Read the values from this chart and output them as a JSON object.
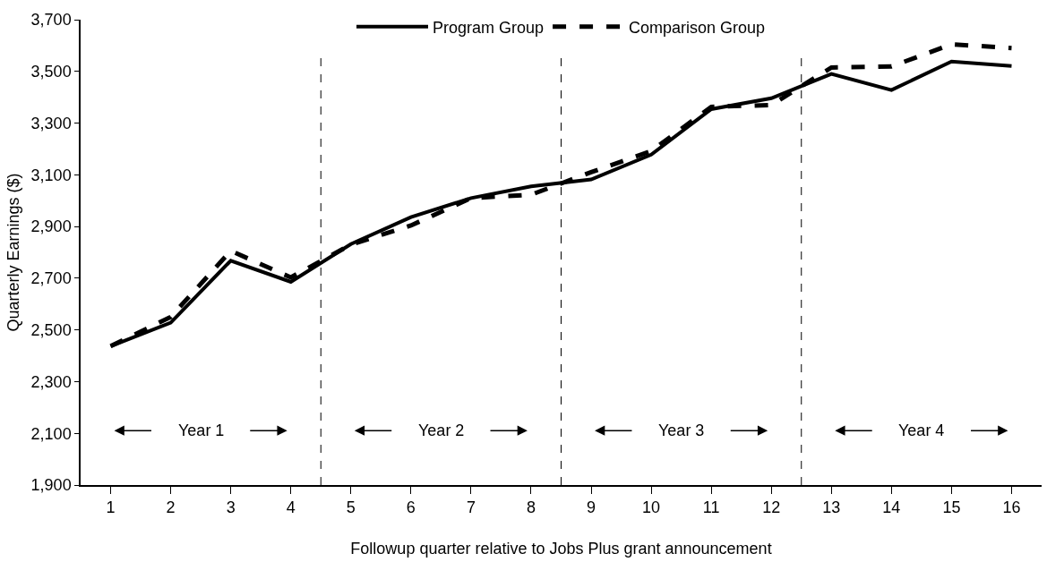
{
  "chart_data": {
    "type": "line",
    "xlabel": "Followup quarter relative to Jobs Plus grant announcement",
    "ylabel": "Quarterly Earnings ($)",
    "x": [
      1,
      2,
      3,
      4,
      5,
      6,
      7,
      8,
      9,
      10,
      11,
      12,
      13,
      14,
      15,
      16
    ],
    "series": [
      {
        "name": "Program Group",
        "color": "#000000",
        "line_style": "solid",
        "values": [
          2437,
          2528,
          2768,
          2686,
          2832,
          2936,
          3010,
          3055,
          3082,
          3178,
          3354,
          3396,
          3490,
          3428,
          3538,
          3521
        ]
      },
      {
        "name": "Comparison Group",
        "color": "#000000",
        "line_style": "dashed",
        "values": [
          2437,
          2550,
          2806,
          2703,
          2830,
          2904,
          3010,
          3023,
          3110,
          3192,
          3363,
          3370,
          3515,
          3519,
          3605,
          3590
        ]
      }
    ],
    "xlim": [
      0.5,
      16.5
    ],
    "xticks": [
      1,
      2,
      3,
      4,
      5,
      6,
      7,
      8,
      9,
      10,
      11,
      12,
      13,
      14,
      15,
      16
    ],
    "ylim": [
      1900,
      3700
    ],
    "yticks": [
      {
        "value": 1900,
        "label": "1,900"
      },
      {
        "value": 2100,
        "label": "2,100"
      },
      {
        "value": 2300,
        "label": "2,300"
      },
      {
        "value": 2500,
        "label": "2,500"
      },
      {
        "value": 2700,
        "label": "2,700"
      },
      {
        "value": 2900,
        "label": "2,900"
      },
      {
        "value": 3100,
        "label": "3,100"
      },
      {
        "value": 3300,
        "label": "3,300"
      },
      {
        "value": 3500,
        "label": "3,500"
      },
      {
        "value": 3700,
        "label": "3,700"
      }
    ],
    "ref_lines": [
      {
        "axis": "x",
        "value": 4.5,
        "color": "#000000",
        "line_style": "dashed"
      },
      {
        "axis": "x",
        "value": 8.5,
        "color": "#000000",
        "line_style": "dashed"
      },
      {
        "axis": "x",
        "value": 12.5,
        "color": "#000000",
        "line_style": "dashed"
      }
    ],
    "annotations": [
      "Year 1",
      "Year 2",
      "Year 3",
      "Year 4"
    ],
    "legend": "top",
    "marker": "none"
  }
}
